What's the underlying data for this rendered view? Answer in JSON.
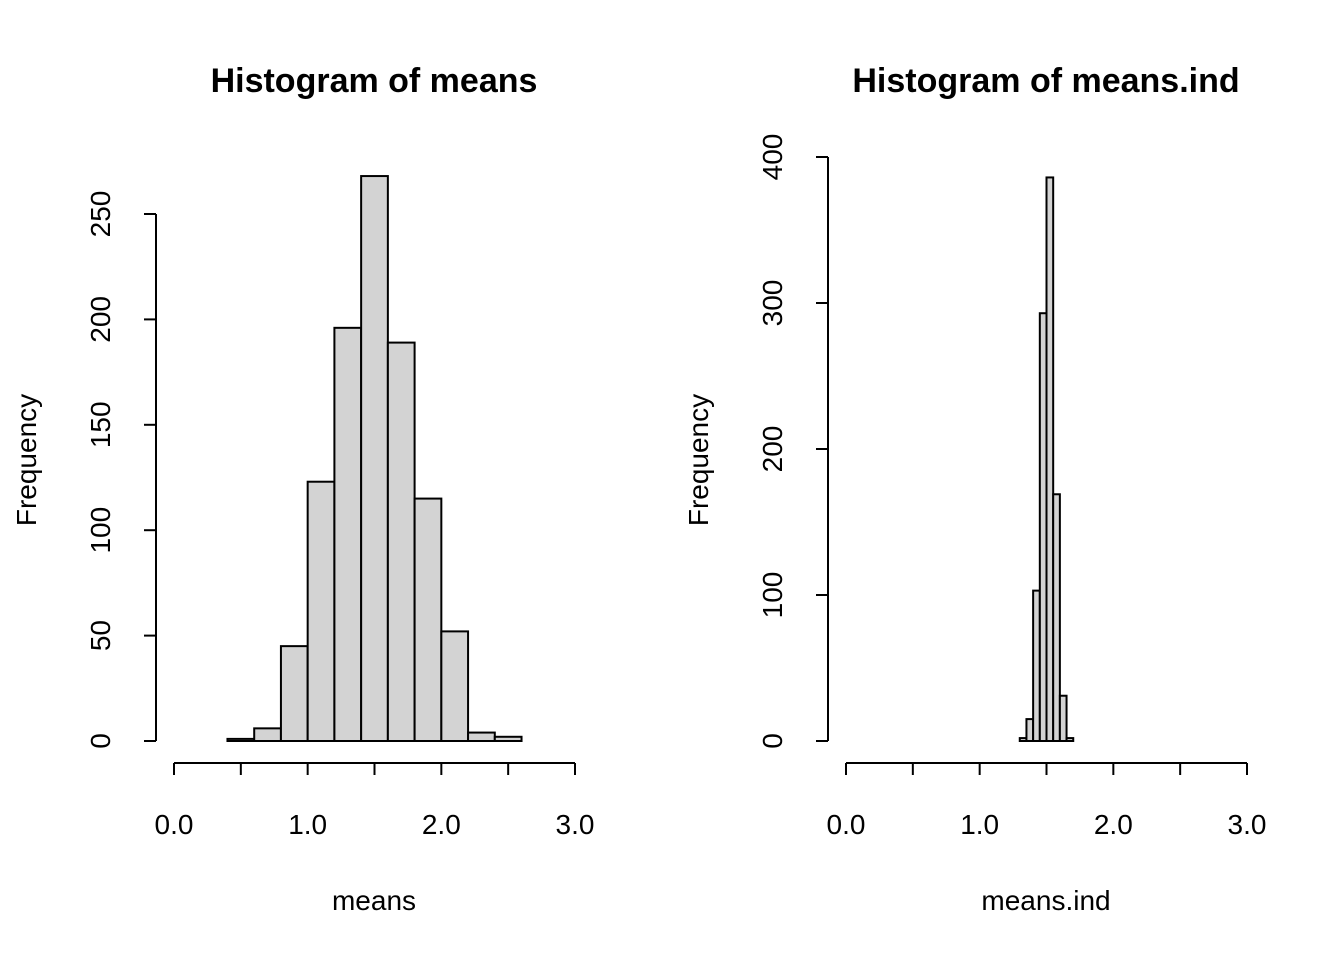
{
  "chart_data": [
    {
      "type": "bar",
      "title": "Histogram of means",
      "xlabel": "means",
      "ylabel": "Frequency",
      "xlim": [
        0,
        3
      ],
      "ylim": [
        0,
        250
      ],
      "x_ticks": [
        0,
        0.5,
        1,
        1.5,
        2,
        2.5,
        3
      ],
      "x_tick_labels": [
        "0.0",
        "",
        "1.0",
        "",
        "2.0",
        "",
        "3.0"
      ],
      "y_ticks": [
        0,
        50,
        100,
        150,
        200,
        250
      ],
      "y_tick_labels": [
        "0",
        "50",
        "100",
        "150",
        "200",
        "250"
      ],
      "bar_fill": "#d3d3d3",
      "bins": [
        {
          "start": 0.4,
          "end": 0.6,
          "count": 1
        },
        {
          "start": 0.6,
          "end": 0.8,
          "count": 6
        },
        {
          "start": 0.8,
          "end": 1.0,
          "count": 45
        },
        {
          "start": 1.0,
          "end": 1.2,
          "count": 123
        },
        {
          "start": 1.2,
          "end": 1.4,
          "count": 196
        },
        {
          "start": 1.4,
          "end": 1.6,
          "count": 268
        },
        {
          "start": 1.6,
          "end": 1.8,
          "count": 189
        },
        {
          "start": 1.8,
          "end": 2.0,
          "count": 115
        },
        {
          "start": 2.0,
          "end": 2.2,
          "count": 52
        },
        {
          "start": 2.2,
          "end": 2.4,
          "count": 4
        },
        {
          "start": 2.4,
          "end": 2.6,
          "count": 2
        }
      ]
    },
    {
      "type": "bar",
      "title": "Histogram of means.ind",
      "xlabel": "means.ind",
      "ylabel": "Frequency",
      "xlim": [
        0,
        3
      ],
      "ylim": [
        0,
        400
      ],
      "x_ticks": [
        0,
        0.5,
        1,
        1.5,
        2,
        2.5,
        3
      ],
      "x_tick_labels": [
        "0.0",
        "",
        "1.0",
        "",
        "2.0",
        "",
        "3.0"
      ],
      "y_ticks": [
        0,
        100,
        200,
        300,
        400
      ],
      "y_tick_labels": [
        "0",
        "100",
        "200",
        "300",
        "400"
      ],
      "bar_fill": "#d3d3d3",
      "bins": [
        {
          "start": 1.3,
          "end": 1.35,
          "count": 2
        },
        {
          "start": 1.35,
          "end": 1.4,
          "count": 15
        },
        {
          "start": 1.4,
          "end": 1.45,
          "count": 103
        },
        {
          "start": 1.45,
          "end": 1.5,
          "count": 293
        },
        {
          "start": 1.5,
          "end": 1.55,
          "count": 386
        },
        {
          "start": 1.55,
          "end": 1.6,
          "count": 169
        },
        {
          "start": 1.6,
          "end": 1.65,
          "count": 31
        },
        {
          "start": 1.65,
          "end": 1.7,
          "count": 2
        }
      ]
    }
  ]
}
